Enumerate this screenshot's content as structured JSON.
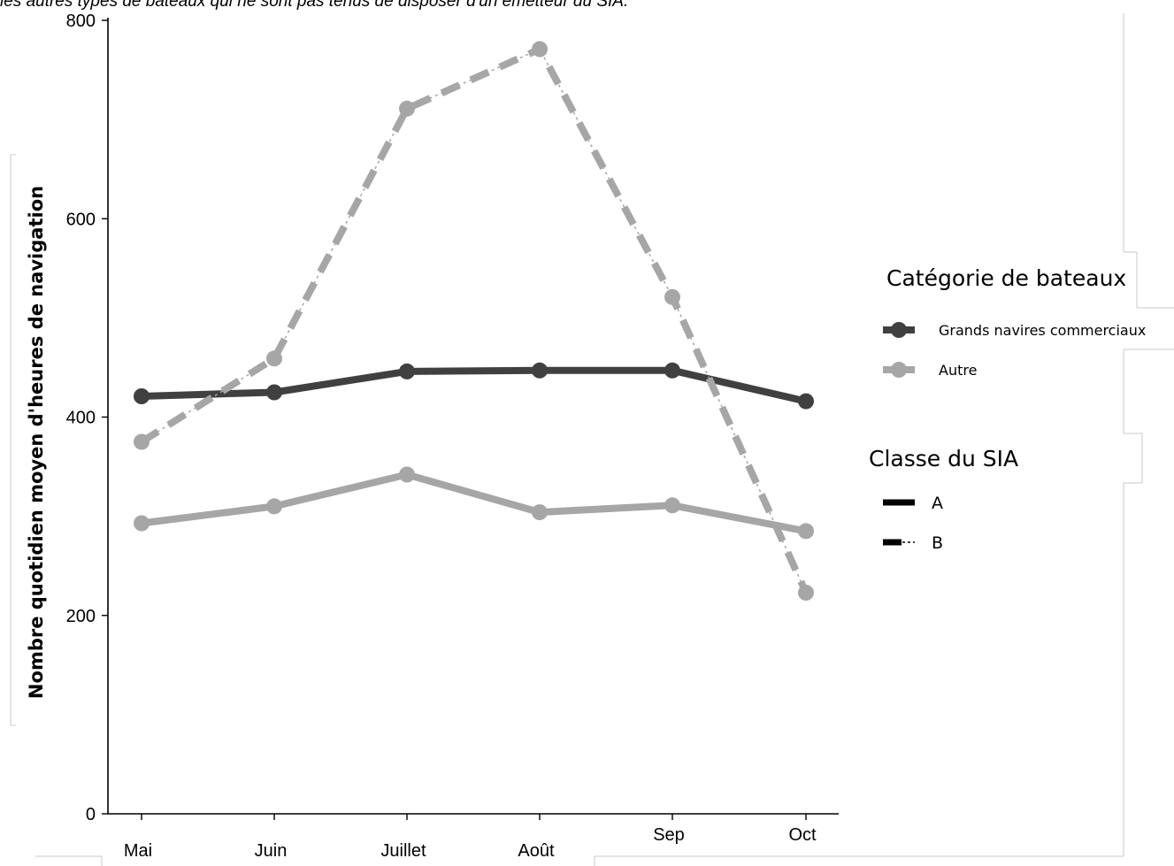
{
  "caption": "les autres types de bateaux qui ne sont pas tenus de disposer d'un émetteur du SIA.",
  "chart_data": {
    "type": "line",
    "ylabel": "Nombre quotidien moyen d'heures de navigation",
    "xlabel": "",
    "categories": [
      "Mai",
      "Juin",
      "Juillet",
      "Août",
      "Sep",
      "Oct"
    ],
    "ylim": [
      0,
      800
    ],
    "yticks": [
      0,
      200,
      400,
      600,
      800
    ],
    "grid": false,
    "legend_placement": "right",
    "series": [
      {
        "category": "Grands navires commerciaux",
        "classe": "A",
        "color": "#404040",
        "dash": "solid",
        "values": [
          421,
          425,
          446,
          447,
          447,
          416
        ]
      },
      {
        "category": "Autre",
        "classe": "A",
        "color": "#a6a6a6",
        "dash": "solid",
        "values": [
          293,
          310,
          342,
          304,
          311,
          285
        ]
      },
      {
        "category": "Autre",
        "classe": "B",
        "color": "#a6a6a6",
        "dash": "dashed",
        "values": [
          375,
          459,
          711,
          771,
          521,
          223
        ]
      }
    ],
    "legend": {
      "category_title": "Catégorie de bateaux",
      "category_items": [
        {
          "label": "Grands navires commerciaux",
          "color": "#404040"
        },
        {
          "label": "Autre",
          "color": "#a6a6a6"
        }
      ],
      "class_title": "Classe du SIA",
      "class_items": [
        {
          "label": "A",
          "dash": "solid"
        },
        {
          "label": "B",
          "dash": "dashed"
        }
      ]
    }
  }
}
